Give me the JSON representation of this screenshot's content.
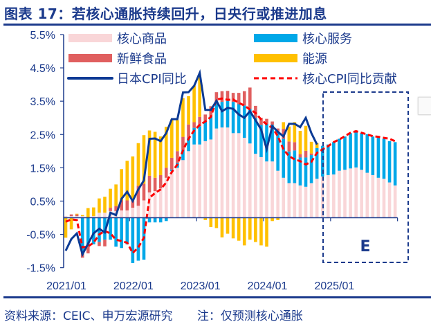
{
  "title": "图表 17：若核心通胀持续回升，日央行或推进加息",
  "footer": {
    "source": "资料来源：CEIC、申万宏源研究",
    "note": "注：仅预测核心通胀"
  },
  "colors": {
    "core_goods": "#f9d6d8",
    "core_services": "#00a8e8",
    "fresh_food": "#e05f5f",
    "energy": "#ffc000",
    "cpi_line": "#0b3a94",
    "core_line": "#ff0000",
    "axis": "#1b3a8c"
  },
  "chart_data": {
    "type": "bar",
    "stacked": true,
    "title": "",
    "xlabel": "",
    "ylabel": "",
    "ylim": [
      -1.5,
      5.5
    ],
    "yticks": [
      "5.5%",
      "4.5%",
      "3.5%",
      "2.5%",
      "1.5%",
      "0.5%",
      "-0.5%",
      "-1.5%"
    ],
    "ytick_values": [
      5.5,
      4.5,
      3.5,
      2.5,
      1.5,
      0.5,
      -0.5,
      -1.5
    ],
    "xtick_labels": [
      "2021/01",
      "2022/01",
      "2023/01",
      "2024/01",
      "2025/01"
    ],
    "grid": false,
    "legend_position": "top",
    "categories": [
      "2021/01",
      "2021/02",
      "2021/03",
      "2021/04",
      "2021/05",
      "2021/06",
      "2021/07",
      "2021/08",
      "2021/09",
      "2021/10",
      "2021/11",
      "2021/12",
      "2022/01",
      "2022/02",
      "2022/03",
      "2022/04",
      "2022/05",
      "2022/06",
      "2022/07",
      "2022/08",
      "2022/09",
      "2022/10",
      "2022/11",
      "2022/12",
      "2023/01",
      "2023/02",
      "2023/03",
      "2023/04",
      "2023/05",
      "2023/06",
      "2023/07",
      "2023/08",
      "2023/09",
      "2023/10",
      "2023/11",
      "2023/12",
      "2024/01",
      "2024/02",
      "2024/03",
      "2024/04",
      "2024/05",
      "2024/06",
      "2024/07",
      "2024/08",
      "2024/09",
      "2024/10",
      "2024/11",
      "2024/12",
      "2025/01",
      "2025/02",
      "2025/03",
      "2025/04",
      "2025/05",
      "2025/06",
      "2025/07",
      "2025/08",
      "2025/09",
      "2025/10",
      "2025/11",
      "2025/12"
    ],
    "forecast_label": "E",
    "series": [
      {
        "name": "核心商品",
        "kind": "bar",
        "values": [
          0.05,
          0.05,
          0.05,
          0.05,
          0.0,
          0.05,
          0.15,
          0.15,
          0.2,
          0.2,
          0.22,
          0.22,
          0.3,
          0.36,
          0.52,
          0.76,
          0.8,
          0.88,
          1.2,
          1.4,
          1.5,
          1.73,
          2.0,
          2.2,
          2.2,
          2.3,
          2.35,
          2.68,
          2.71,
          2.71,
          2.54,
          2.54,
          2.4,
          2.23,
          1.92,
          1.82,
          1.69,
          1.69,
          1.41,
          1.2,
          1.04,
          1.04,
          0.97,
          0.93,
          1.04,
          1.17,
          1.24,
          1.28,
          1.3,
          1.41,
          1.44,
          1.48,
          1.51,
          1.44,
          1.35,
          1.28,
          1.2,
          1.17,
          1.06,
          0.97
        ]
      },
      {
        "name": "核心服务",
        "kind": "bar",
        "values": [
          0,
          0,
          0,
          -1.0,
          -0.87,
          -0.8,
          -0.73,
          -0.66,
          -0.66,
          -0.87,
          -0.91,
          -0.8,
          -1.36,
          -1.29,
          -1.26,
          -0.14,
          -0.14,
          -0.14,
          -0.1,
          0.05,
          0.15,
          0.3,
          0.4,
          0.5,
          0.55,
          0.6,
          0.7,
          0.83,
          0.77,
          0.8,
          0.94,
          0.87,
          0.97,
          1.04,
          1.07,
          0.97,
          1.13,
          1.1,
          1.17,
          1.17,
          0.95,
          0.98,
          0.84,
          0.88,
          0.84,
          0.92,
          0.92,
          0.92,
          0.97,
          0.96,
          1.0,
          1.06,
          1.07,
          1.1,
          1.16,
          1.16,
          1.2,
          1.2,
          1.24,
          1.3
        ]
      },
      {
        "name": "新鲜食品",
        "kind": "bar",
        "values": [
          0,
          0.05,
          0.05,
          -0.2,
          -0.2,
          0,
          -0.12,
          -0.2,
          0.1,
          0.15,
          0.3,
          0.3,
          0.2,
          0.6,
          0.5,
          0.5,
          0.4,
          0.4,
          0.3,
          0.35,
          0.35,
          0.4,
          0.4,
          0.17,
          0.28,
          0.2,
          0.3,
          0.26,
          0.32,
          0.3,
          0.27,
          0.34,
          0.43,
          0.64,
          0.37,
          0.21,
          0.15,
          0.1,
          0.1,
          0.3,
          0.3,
          0.25,
          0.1,
          0.2,
          0.05,
          0,
          0,
          0,
          0,
          0,
          0,
          0,
          0,
          0,
          0,
          0,
          0,
          0,
          0,
          0
        ]
      },
      {
        "name": "能源",
        "kind": "bar",
        "values": [
          -0.6,
          -0.35,
          0.02,
          0.03,
          0.29,
          0.26,
          0.43,
          0.48,
          0.57,
          0.65,
          0.94,
          1.19,
          1.34,
          1.28,
          1.46,
          1.36,
          1.38,
          1.16,
          1.23,
          1.15,
          0.93,
          1.16,
          0.85,
          1.1,
          1.2,
          -0.07,
          -0.28,
          -0.31,
          -0.59,
          -0.48,
          -0.62,
          -0.69,
          -0.83,
          -0.66,
          -0.73,
          -0.83,
          -0.87,
          -0.1,
          -0.07,
          0.2,
          0.45,
          0.6,
          0.7,
          0.75,
          0.35,
          0.15,
          0,
          0,
          0,
          0,
          0,
          0,
          0,
          0,
          0,
          0,
          0,
          0,
          0,
          0
        ]
      },
      {
        "name": "日本CPI同比",
        "kind": "line",
        "values": [
          -0.99,
          -0.64,
          -0.47,
          -1.1,
          -0.78,
          -0.47,
          -0.33,
          -0.44,
          0.15,
          0.08,
          0.57,
          0.78,
          0.5,
          0.85,
          1.12,
          2.37,
          2.38,
          2.3,
          2.54,
          2.96,
          2.96,
          3.76,
          3.77,
          3.96,
          4.35,
          3.24,
          3.24,
          3.51,
          3.2,
          3.3,
          3.27,
          3.1,
          3.0,
          3.2,
          2.93,
          2.65,
          2.06,
          2.75,
          2.58,
          2.44,
          2.82,
          2.82,
          2.72,
          3.0,
          2.54,
          2.2,
          null,
          null,
          null,
          null,
          null,
          null,
          null,
          null,
          null,
          null,
          null,
          null,
          null,
          null
        ]
      },
      {
        "name": "核心CPI同比贡献",
        "kind": "dashed-line",
        "values": [
          -0.12,
          -0.05,
          -0.07,
          -0.89,
          -0.86,
          -0.75,
          -0.5,
          -0.4,
          -0.47,
          -0.66,
          -0.7,
          -0.75,
          -1.06,
          -0.89,
          -0.6,
          0.6,
          0.74,
          0.85,
          1.06,
          1.37,
          1.6,
          2.02,
          2.37,
          2.62,
          2.79,
          2.89,
          3.03,
          3.55,
          3.58,
          3.54,
          3.55,
          3.45,
          3.37,
          3.25,
          3.15,
          2.95,
          2.8,
          2.7,
          2.45,
          2.05,
          1.85,
          1.75,
          1.7,
          1.6,
          1.68,
          1.95,
          2.05,
          2.15,
          2.27,
          2.35,
          2.45,
          2.55,
          2.6,
          2.55,
          2.5,
          2.45,
          2.43,
          2.4,
          2.37,
          2.3
        ]
      }
    ]
  },
  "legend": {
    "core_goods": "核心商品",
    "core_services": "核心服务",
    "fresh_food": "新鲜食品",
    "energy": "能源",
    "cpi_line": "日本CPI同比",
    "core_line": "核心CPI同比贡献"
  }
}
